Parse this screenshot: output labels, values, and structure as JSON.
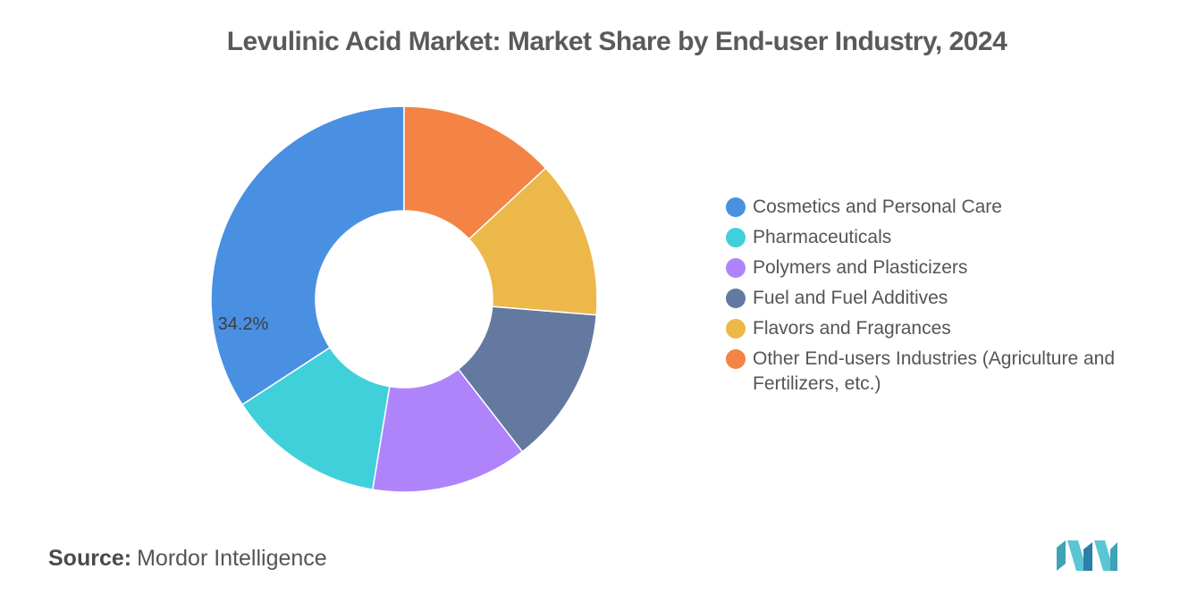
{
  "title": "Levulinic Acid Market: Market Share by End-user Industry, 2024",
  "chart_data": {
    "type": "pie",
    "donut": true,
    "title": "Levulinic Acid Market: Market Share by End-user Industry, 2024",
    "start_angle_deg": 0,
    "direction": "counterclockwise",
    "series": [
      {
        "name": "Cosmetics and Personal Care",
        "value": 34.2,
        "color": "#4a90e2",
        "label": "34.2%"
      },
      {
        "name": "Pharmaceuticals",
        "value": 13.2,
        "color": "#40d0da",
        "label": ""
      },
      {
        "name": "Polymers and Plasticizers",
        "value": 13.1,
        "color": "#af84fb",
        "label": ""
      },
      {
        "name": "Fuel and Fuel Additives",
        "value": 13.2,
        "color": "#6479a0",
        "label": ""
      },
      {
        "name": "Flavors and Fragrances",
        "value": 13.2,
        "color": "#ecb84a",
        "label": ""
      },
      {
        "name": "Other End-users Industries (Agriculture and Fertilizers, etc.)",
        "value": 13.1,
        "color": "#f38446",
        "label": ""
      }
    ],
    "legend_position": "right"
  },
  "source": {
    "label": "Source:",
    "value": "Mordor Intelligence"
  }
}
